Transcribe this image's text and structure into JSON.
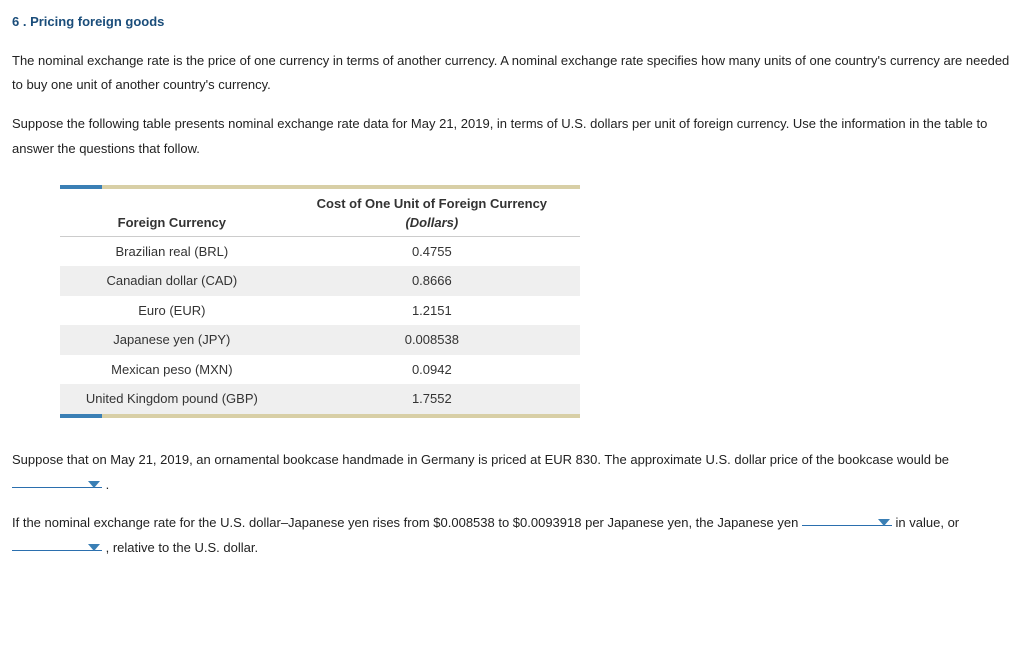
{
  "title": "6 . Pricing foreign goods",
  "para1": "The nominal exchange rate is the price of one currency in terms of another currency. A nominal exchange rate specifies how many units of one country's currency are needed to buy one unit of another country's currency.",
  "para2": "Suppose the following table presents nominal exchange rate data for May 21, 2019, in terms of U.S. dollars per unit of foreign currency. Use the information in the table to answer the questions that follow.",
  "table": {
    "col1_header": "Foreign Currency",
    "col2_header_line1": "Cost of One Unit of Foreign Currency",
    "col2_header_line2": "(Dollars)",
    "rows": [
      {
        "currency": "Brazilian real (BRL)",
        "value": "0.4755"
      },
      {
        "currency": "Canadian dollar (CAD)",
        "value": "0.8666"
      },
      {
        "currency": "Euro (EUR)",
        "value": "1.2151"
      },
      {
        "currency": "Japanese yen (JPY)",
        "value": "0.008538"
      },
      {
        "currency": "Mexican peso (MXN)",
        "value": "0.0942"
      },
      {
        "currency": "United Kingdom pound (GBP)",
        "value": "1.7552"
      }
    ]
  },
  "q1_a": "Suppose that on May 21, 2019, an ornamental bookcase handmade in Germany is priced at EUR 830. The approximate U.S. dollar price of the bookcase would be ",
  "q1_b": " .",
  "q2_a": "If the nominal exchange rate for the U.S. dollar–Japanese yen rises from $0.008538 to $0.0093918 per Japanese yen, the Japanese yen ",
  "q2_b": " in value, or ",
  "q2_c": " , relative to the U.S. dollar."
}
